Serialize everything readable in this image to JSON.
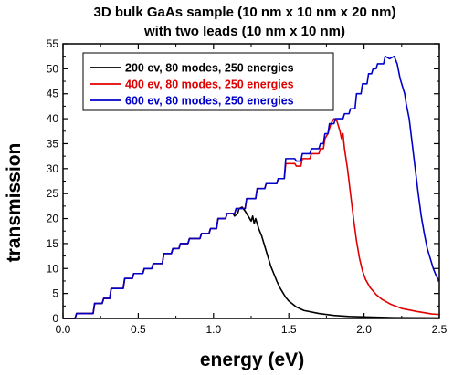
{
  "chart_data": {
    "type": "line",
    "title": "3D bulk GaAs sample (10 nm x 10 nm x 20 nm)",
    "subtitle": "with two leads (10 nm x 10 nm)",
    "xlabel": "energy (eV)",
    "ylabel": "transmission",
    "xlim": [
      0.0,
      2.5
    ],
    "ylim": [
      0,
      55
    ],
    "xticks": [
      "0.0",
      "0.5",
      "1.0",
      "1.5",
      "2.0",
      "2.5"
    ],
    "yticks": [
      "0",
      "5",
      "10",
      "15",
      "20",
      "25",
      "30",
      "35",
      "40",
      "45",
      "50",
      "55"
    ],
    "grid": false,
    "legend_position": "top-left",
    "series": [
      {
        "name": "200 ev, 80 modes, 250 energies",
        "color": "#000000",
        "points": [
          [
            0.0,
            0
          ],
          [
            0.08,
            0
          ],
          [
            0.09,
            1
          ],
          [
            0.2,
            1
          ],
          [
            0.21,
            3
          ],
          [
            0.26,
            3
          ],
          [
            0.27,
            4
          ],
          [
            0.31,
            4
          ],
          [
            0.32,
            6
          ],
          [
            0.4,
            6
          ],
          [
            0.41,
            8
          ],
          [
            0.46,
            8
          ],
          [
            0.47,
            9
          ],
          [
            0.53,
            9
          ],
          [
            0.54,
            10
          ],
          [
            0.59,
            10
          ],
          [
            0.6,
            11
          ],
          [
            0.66,
            11
          ],
          [
            0.67,
            13
          ],
          [
            0.72,
            13
          ],
          [
            0.73,
            14
          ],
          [
            0.77,
            14
          ],
          [
            0.78,
            15
          ],
          [
            0.83,
            15
          ],
          [
            0.84,
            16
          ],
          [
            0.91,
            16
          ],
          [
            0.92,
            17
          ],
          [
            0.97,
            17
          ],
          [
            0.98,
            18
          ],
          [
            1.02,
            18
          ],
          [
            1.03,
            20
          ],
          [
            1.08,
            20
          ],
          [
            1.09,
            21
          ],
          [
            1.13,
            21
          ],
          [
            1.14,
            20.5
          ],
          [
            1.16,
            21
          ],
          [
            1.17,
            22
          ],
          [
            1.19,
            22.3
          ],
          [
            1.21,
            21.5
          ],
          [
            1.23,
            20.5
          ],
          [
            1.25,
            19.5
          ],
          [
            1.26,
            20.5
          ],
          [
            1.27,
            19
          ],
          [
            1.28,
            20
          ],
          [
            1.3,
            18
          ],
          [
            1.32,
            16.5
          ],
          [
            1.34,
            14.5
          ],
          [
            1.36,
            12.5
          ],
          [
            1.38,
            10.5
          ],
          [
            1.4,
            9
          ],
          [
            1.42,
            7.5
          ],
          [
            1.44,
            6.2
          ],
          [
            1.46,
            5.2
          ],
          [
            1.48,
            4.2
          ],
          [
            1.5,
            3.5
          ],
          [
            1.55,
            2.3
          ],
          [
            1.6,
            1.6
          ],
          [
            1.7,
            1.0
          ],
          [
            1.8,
            0.6
          ],
          [
            1.9,
            0.4
          ],
          [
            2.0,
            0.3
          ],
          [
            2.2,
            0.15
          ],
          [
            2.5,
            0.1
          ]
        ]
      },
      {
        "name": "400 ev, 80 modes, 250 energies",
        "color": "#e00000",
        "points": [
          [
            0.0,
            0
          ],
          [
            0.08,
            0
          ],
          [
            0.09,
            1
          ],
          [
            0.2,
            1
          ],
          [
            0.21,
            3
          ],
          [
            0.26,
            3
          ],
          [
            0.27,
            4
          ],
          [
            0.31,
            4
          ],
          [
            0.32,
            6
          ],
          [
            0.4,
            6
          ],
          [
            0.41,
            8
          ],
          [
            0.46,
            8
          ],
          [
            0.47,
            9
          ],
          [
            0.53,
            9
          ],
          [
            0.54,
            10
          ],
          [
            0.59,
            10
          ],
          [
            0.6,
            11
          ],
          [
            0.66,
            11
          ],
          [
            0.67,
            13
          ],
          [
            0.72,
            13
          ],
          [
            0.73,
            14
          ],
          [
            0.77,
            14
          ],
          [
            0.78,
            15
          ],
          [
            0.83,
            15
          ],
          [
            0.84,
            16
          ],
          [
            0.91,
            16
          ],
          [
            0.92,
            17
          ],
          [
            0.97,
            17
          ],
          [
            0.98,
            18
          ],
          [
            1.02,
            18
          ],
          [
            1.03,
            20
          ],
          [
            1.08,
            20
          ],
          [
            1.09,
            21
          ],
          [
            1.14,
            21
          ],
          [
            1.15,
            22
          ],
          [
            1.21,
            22
          ],
          [
            1.22,
            24
          ],
          [
            1.28,
            24
          ],
          [
            1.29,
            26
          ],
          [
            1.34,
            26
          ],
          [
            1.35,
            27
          ],
          [
            1.42,
            27
          ],
          [
            1.43,
            28
          ],
          [
            1.47,
            28
          ],
          [
            1.48,
            31
          ],
          [
            1.54,
            31
          ],
          [
            1.55,
            30.5
          ],
          [
            1.58,
            30.5
          ],
          [
            1.59,
            32
          ],
          [
            1.64,
            32
          ],
          [
            1.65,
            33
          ],
          [
            1.7,
            33
          ],
          [
            1.71,
            34
          ],
          [
            1.73,
            34
          ],
          [
            1.74,
            36
          ],
          [
            1.76,
            37
          ],
          [
            1.78,
            39
          ],
          [
            1.8,
            40
          ],
          [
            1.82,
            39.5
          ],
          [
            1.84,
            37.5
          ],
          [
            1.85,
            36
          ],
          [
            1.86,
            37
          ],
          [
            1.87,
            34
          ],
          [
            1.89,
            30
          ],
          [
            1.91,
            25
          ],
          [
            1.93,
            20
          ],
          [
            1.95,
            15.5
          ],
          [
            1.97,
            12
          ],
          [
            1.99,
            9.5
          ],
          [
            2.01,
            7.8
          ],
          [
            2.04,
            6.2
          ],
          [
            2.08,
            4.8
          ],
          [
            2.12,
            3.8
          ],
          [
            2.18,
            2.8
          ],
          [
            2.25,
            2.0
          ],
          [
            2.35,
            1.4
          ],
          [
            2.45,
            0.9
          ],
          [
            2.5,
            0.8
          ]
        ]
      },
      {
        "name": "600 ev, 80 modes, 250 energies",
        "color": "#0000c8",
        "points": [
          [
            0.0,
            0
          ],
          [
            0.08,
            0
          ],
          [
            0.09,
            1
          ],
          [
            0.2,
            1
          ],
          [
            0.21,
            3
          ],
          [
            0.26,
            3
          ],
          [
            0.27,
            4
          ],
          [
            0.31,
            4
          ],
          [
            0.32,
            6
          ],
          [
            0.4,
            6
          ],
          [
            0.41,
            8
          ],
          [
            0.46,
            8
          ],
          [
            0.47,
            9
          ],
          [
            0.53,
            9
          ],
          [
            0.54,
            10
          ],
          [
            0.59,
            10
          ],
          [
            0.6,
            11
          ],
          [
            0.66,
            11
          ],
          [
            0.67,
            13
          ],
          [
            0.72,
            13
          ],
          [
            0.73,
            14
          ],
          [
            0.77,
            14
          ],
          [
            0.78,
            15
          ],
          [
            0.83,
            15
          ],
          [
            0.84,
            16
          ],
          [
            0.91,
            16
          ],
          [
            0.92,
            17
          ],
          [
            0.97,
            17
          ],
          [
            0.98,
            18
          ],
          [
            1.02,
            18
          ],
          [
            1.03,
            20
          ],
          [
            1.08,
            20
          ],
          [
            1.09,
            21
          ],
          [
            1.14,
            21
          ],
          [
            1.15,
            22
          ],
          [
            1.21,
            22
          ],
          [
            1.22,
            24
          ],
          [
            1.28,
            24
          ],
          [
            1.29,
            26
          ],
          [
            1.34,
            26
          ],
          [
            1.35,
            27
          ],
          [
            1.42,
            27
          ],
          [
            1.43,
            28
          ],
          [
            1.47,
            28
          ],
          [
            1.48,
            32
          ],
          [
            1.54,
            32
          ],
          [
            1.55,
            31.5
          ],
          [
            1.58,
            31.5
          ],
          [
            1.59,
            33
          ],
          [
            1.64,
            33
          ],
          [
            1.65,
            34
          ],
          [
            1.7,
            34
          ],
          [
            1.71,
            35
          ],
          [
            1.73,
            35
          ],
          [
            1.74,
            37
          ],
          [
            1.76,
            37
          ],
          [
            1.77,
            39
          ],
          [
            1.8,
            39
          ],
          [
            1.81,
            40
          ],
          [
            1.86,
            40
          ],
          [
            1.87,
            41
          ],
          [
            1.9,
            41
          ],
          [
            1.91,
            42
          ],
          [
            1.94,
            42
          ],
          [
            1.95,
            45
          ],
          [
            1.98,
            45
          ],
          [
            1.99,
            47
          ],
          [
            2.02,
            47
          ],
          [
            2.03,
            49
          ],
          [
            2.05,
            49
          ],
          [
            2.06,
            50
          ],
          [
            2.08,
            50
          ],
          [
            2.09,
            51
          ],
          [
            2.13,
            51
          ],
          [
            2.14,
            52.5
          ],
          [
            2.17,
            52
          ],
          [
            2.2,
            52.5
          ],
          [
            2.22,
            51
          ],
          [
            2.24,
            48
          ],
          [
            2.27,
            45
          ],
          [
            2.28,
            43
          ],
          [
            2.3,
            40
          ],
          [
            2.32,
            35
          ],
          [
            2.34,
            30
          ],
          [
            2.36,
            25
          ],
          [
            2.38,
            20.5
          ],
          [
            2.4,
            17
          ],
          [
            2.42,
            14
          ],
          [
            2.44,
            12
          ],
          [
            2.46,
            10
          ],
          [
            2.48,
            8.5
          ],
          [
            2.5,
            7.5
          ]
        ]
      }
    ]
  }
}
